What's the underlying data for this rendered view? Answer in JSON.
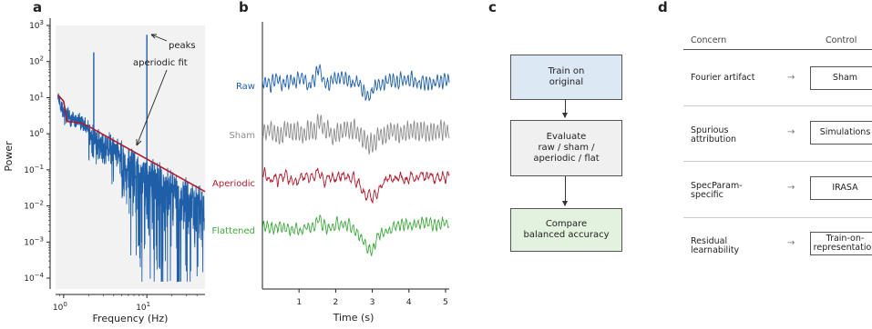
{
  "panel_labels": [
    "a",
    "b",
    "c",
    "d"
  ],
  "panel_a": {
    "xlabel": "Frequency (Hz)",
    "ylabel": "Power",
    "annotations": [
      "peaks",
      "aperiodic fit"
    ]
  },
  "panel_b": {
    "xlabel": "Time (s)",
    "traces": [
      "Raw",
      "Sham",
      "Aperiodic",
      "Flattened"
    ]
  },
  "panel_c": {
    "boxes": [
      {
        "lines": [
          "Train on",
          "original"
        ]
      },
      {
        "lines": [
          "Evaluate",
          "raw / sham /",
          "aperiodic / flat"
        ]
      },
      {
        "lines": [
          "Compare",
          "balanced accuracy"
        ]
      }
    ]
  },
  "panel_d": {
    "header_concern": "Concern",
    "header_control": "Control",
    "rows": [
      {
        "concern": [
          "Fourier artifact"
        ],
        "arrow": "→",
        "control": [
          "Sham"
        ]
      },
      {
        "concern": [
          "Spurious",
          "attribution"
        ],
        "arrow": "→",
        "control": [
          "Simulations"
        ]
      },
      {
        "concern": [
          "SpecParam-",
          "specific"
        ],
        "arrow": "→",
        "control": [
          "IRASA"
        ]
      },
      {
        "concern": [
          "Residual",
          "learnability"
        ],
        "arrow": "→",
        "control": [
          "Train-on-",
          "representation"
        ]
      }
    ]
  },
  "chart_data": [
    {
      "type": "line",
      "panel": "a",
      "xscale": "log",
      "yscale": "log",
      "xlim": [
        0.8,
        50
      ],
      "ylim": [
        5e-05,
        1000
      ],
      "xticks": [
        1,
        10
      ],
      "xtick_labels": [
        "10^0",
        "10^1"
      ],
      "yticks": [
        0.0001,
        0.001,
        0.01,
        0.1,
        1,
        10,
        100,
        1000
      ],
      "ytick_labels": [
        "10^-4",
        "10^-3",
        "10^-2",
        "10^-1",
        "10^0",
        "10^1",
        "10^2",
        "10^3"
      ],
      "xlabel": "Frequency (Hz)",
      "ylabel": "Power",
      "grid": false,
      "background": "#f2f2f2",
      "series": [
        {
          "color": "#1f5fa8",
          "kind": "power-spectrum",
          "x": [
            0.85,
            1.0,
            1.3,
            1.7,
            2.2,
            2.5,
            3,
            5,
            10,
            20,
            30,
            50
          ],
          "y": [
            12,
            5,
            3,
            2.5,
            1.5,
            1.2,
            1,
            0.45,
            0.18,
            0.08,
            0.05,
            0.03
          ]
        },
        {
          "color": "#b01c2e",
          "kind": "aperiodic-fit",
          "x": [
            0.85,
            1.0,
            1.05,
            1.1,
            1.6,
            2.0,
            50
          ],
          "y": [
            12,
            8,
            4,
            2.2,
            2.0,
            1.6,
            0.025
          ]
        }
      ],
      "peaks": [
        {
          "x": 2.3,
          "y": 180
        },
        {
          "x": 10,
          "y": 550
        }
      ]
    },
    {
      "type": "line",
      "panel": "b",
      "xlabel": "Time (s)",
      "xlim": [
        0,
        5.1
      ],
      "xticks": [
        1,
        2,
        3,
        4,
        5
      ],
      "series": [
        {
          "name": "Raw",
          "color": "#1f5fa8"
        },
        {
          "name": "Sham",
          "color": "#8c8c8c"
        },
        {
          "name": "Aperiodic",
          "color": "#b01c2e"
        },
        {
          "name": "Flattened",
          "color": "#3ea83e"
        }
      ]
    }
  ],
  "colors": {
    "raw": "#1f5fa8",
    "sham": "#8c8c8c",
    "aperiodic": "#b01c2e",
    "flattened": "#3ea83e",
    "box_blue": "#dce8f4",
    "box_gray": "#f0f0f0",
    "box_green": "#e3f2de"
  }
}
